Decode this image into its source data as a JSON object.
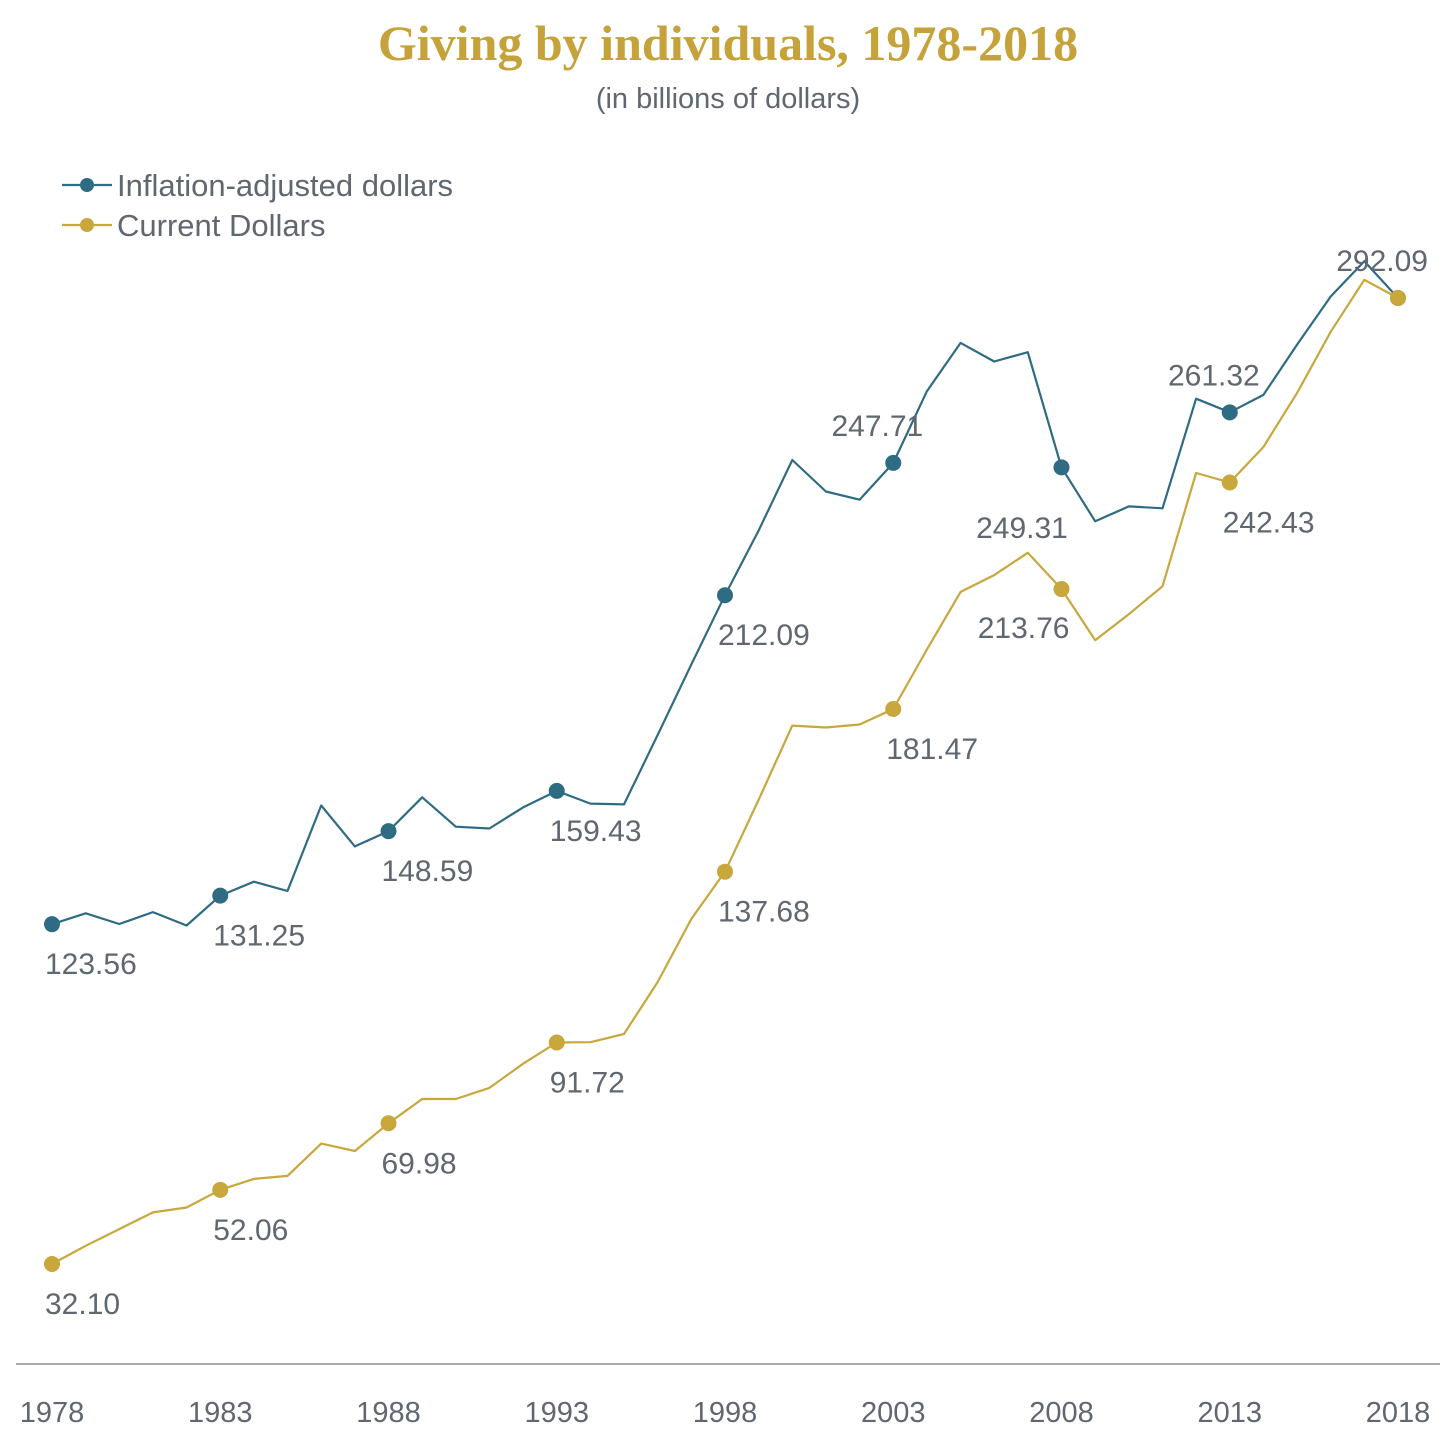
{
  "colors": {
    "title": "#c6a23a",
    "text": "#5f6770",
    "axis": "#8a8f95",
    "inflation": "#2f6b82",
    "current": "#c8a73c"
  },
  "chart_data": {
    "type": "line",
    "title": "Giving by individuals, 1978-2018",
    "subtitle": "(in billions of dollars)",
    "xlabel": "",
    "ylabel": "",
    "grid": false,
    "legend_position": "top-left",
    "x": [
      1978,
      1979,
      1980,
      1981,
      1982,
      1983,
      1984,
      1985,
      1986,
      1987,
      1988,
      1989,
      1990,
      1991,
      1992,
      1993,
      1994,
      1995,
      1996,
      1997,
      1998,
      1999,
      2000,
      2001,
      2002,
      2003,
      2004,
      2005,
      2006,
      2007,
      2008,
      2009,
      2010,
      2011,
      2012,
      2013,
      2014,
      2015,
      2016,
      2017,
      2018
    ],
    "ylim": [
      0,
      300
    ],
    "x_ticks": [
      "1978",
      "1983",
      "1988",
      "1993",
      "1998",
      "2003",
      "2008",
      "2013",
      "2018"
    ],
    "series": [
      {
        "name": "Inflation-adjusted dollars",
        "color_key": "inflation",
        "values": [
          123.56,
          126.5,
          123.6,
          126.8,
          123.2,
          131.25,
          135.0,
          132.5,
          155.5,
          144.5,
          148.59,
          157.7,
          149.8,
          149.3,
          155.0,
          159.43,
          156.0,
          155.8,
          174.5,
          193.5,
          212.09,
          229.5,
          248.5,
          240.0,
          237.8,
          247.71,
          267.0,
          280.0,
          275.0,
          277.5,
          246.5,
          232.0,
          236.0,
          235.5,
          265.0,
          261.32,
          266.0,
          279.5,
          292.5,
          302.0,
          292.09
        ],
        "markers": [
          {
            "year": 1978,
            "label": "123.56",
            "label_pos": "below"
          },
          {
            "year": 1983,
            "label": "131.25",
            "label_pos": "below"
          },
          {
            "year": 1988,
            "label": "148.59",
            "label_pos": "below"
          },
          {
            "year": 1993,
            "label": "159.43",
            "label_pos": "below"
          },
          {
            "year": 1998,
            "label": "212.09",
            "label_pos": "below"
          },
          {
            "year": 2003,
            "label": "247.71",
            "label_pos": "above-left"
          },
          {
            "year": 2008,
            "label": null,
            "label_pos": "none"
          },
          {
            "year": 2013,
            "label": "261.32",
            "label_pos": "above-left"
          },
          {
            "year": 2018,
            "label": "292.09",
            "label_pos": "above-left"
          }
        ]
      },
      {
        "name": "Current Dollars",
        "color_key": "current",
        "values": [
          32.1,
          37.0,
          41.5,
          46.0,
          47.3,
          52.06,
          55.0,
          55.8,
          64.5,
          62.5,
          69.98,
          76.5,
          76.5,
          79.5,
          86.0,
          91.72,
          91.8,
          94.0,
          108.0,
          125.0,
          137.68,
          157.0,
          177.0,
          176.5,
          177.3,
          181.47,
          197.5,
          213.0,
          217.5,
          223.5,
          213.76,
          200.0,
          207.0,
          214.5,
          245.0,
          242.43,
          252.0,
          266.5,
          283.0,
          297.0,
          292.09
        ],
        "markers": [
          {
            "year": 1978,
            "label": "32.10",
            "label_pos": "below"
          },
          {
            "year": 1983,
            "label": "52.06",
            "label_pos": "below"
          },
          {
            "year": 1988,
            "label": "69.98",
            "label_pos": "below"
          },
          {
            "year": 1993,
            "label": "91.72",
            "label_pos": "below"
          },
          {
            "year": 1998,
            "label": "137.68",
            "label_pos": "below"
          },
          {
            "year": 2003,
            "label": "181.47",
            "label_pos": "below"
          },
          {
            "year": 2008,
            "label": "213.76",
            "label_pos": "below-left"
          },
          {
            "year": 2013,
            "label": "242.43",
            "label_pos": "below"
          },
          {
            "year": 2018,
            "label": null,
            "label_pos": "none"
          }
        ]
      }
    ],
    "annotations": [
      {
        "text": "249.31",
        "series": "Current Dollars",
        "year": 2007,
        "label_pos": "above"
      }
    ]
  }
}
